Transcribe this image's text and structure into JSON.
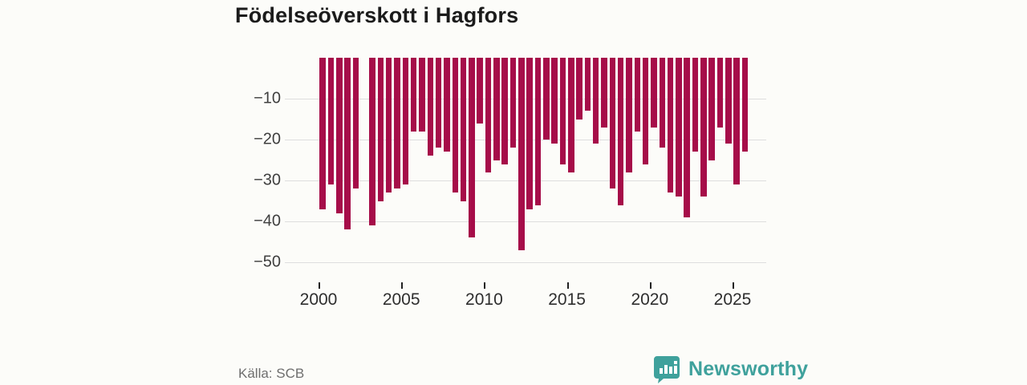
{
  "title": "Födelseöverskott i Hagfors",
  "source": "Källa: SCB",
  "brand": {
    "name": "Newsworthy",
    "color": "#3fa19c",
    "icon": "bar-chart-speech-bubble-icon"
  },
  "colors": {
    "bar": "#a60d49",
    "grid": "#dedede",
    "background": "#fcfcf9",
    "title_text": "#1b1b1b",
    "axis_text": "#3f3f3f",
    "source_text": "#6e6e6e"
  },
  "chart_data": {
    "type": "bar",
    "title": "Födelseöverskott i Hagfors",
    "xlabel": "",
    "ylabel": "",
    "ylim": [
      -50,
      0
    ],
    "yticks": [
      -10,
      -20,
      -30,
      -40,
      -50
    ],
    "ytick_labels": [
      "−10",
      "−20",
      "−30",
      "−40",
      "−50"
    ],
    "xtick_years": [
      2000,
      2005,
      2010,
      2015,
      2020,
      2025
    ],
    "xtick_labels": [
      "2000",
      "2005",
      "2010",
      "2015",
      "2020",
      "2025"
    ],
    "grid": "horizontal",
    "legend_position": "none",
    "x": [
      "2000 H1",
      "2000 H2",
      "2001 H1",
      "2001 H2",
      "2002 H1",
      "2002 H2",
      "2003 H1",
      "2003 H2",
      "2004 H1",
      "2004 H2",
      "2005 H1",
      "2005 H2",
      "2006 H1",
      "2006 H2",
      "2007 H1",
      "2007 H2",
      "2008 H1",
      "2008 H2",
      "2009 H1",
      "2009 H2",
      "2010 H1",
      "2010 H2",
      "2011 H1",
      "2011 H2",
      "2012 H1",
      "2012 H2",
      "2013 H1",
      "2013 H2",
      "2014 H1",
      "2014 H2",
      "2015 H1",
      "2015 H2",
      "2016 H1",
      "2016 H2",
      "2017 H1",
      "2017 H2",
      "2018 H1",
      "2018 H2",
      "2019 H1",
      "2019 H2",
      "2020 H1",
      "2020 H2",
      "2021 H1",
      "2021 H2",
      "2022 H1",
      "2022 H2",
      "2023 H1",
      "2023 H2",
      "2024 H1",
      "2024 H2",
      "2025 H1",
      "2025 H2"
    ],
    "values": [
      -37,
      -31,
      -38,
      -42,
      -32,
      0,
      -41,
      -35,
      -33,
      -32,
      -31,
      -18,
      -18,
      -24,
      -22,
      -23,
      -33,
      -35,
      -44,
      -16,
      -28,
      -25,
      -26,
      -22,
      -47,
      -37,
      -36,
      -20,
      -21,
      -26,
      -28,
      -15,
      -13,
      -21,
      -17,
      -32,
      -36,
      -28,
      -18,
      -26,
      -17,
      -22,
      -33,
      -34,
      -39,
      -23,
      -34,
      -25,
      -17,
      -21,
      -31,
      -23
    ]
  }
}
